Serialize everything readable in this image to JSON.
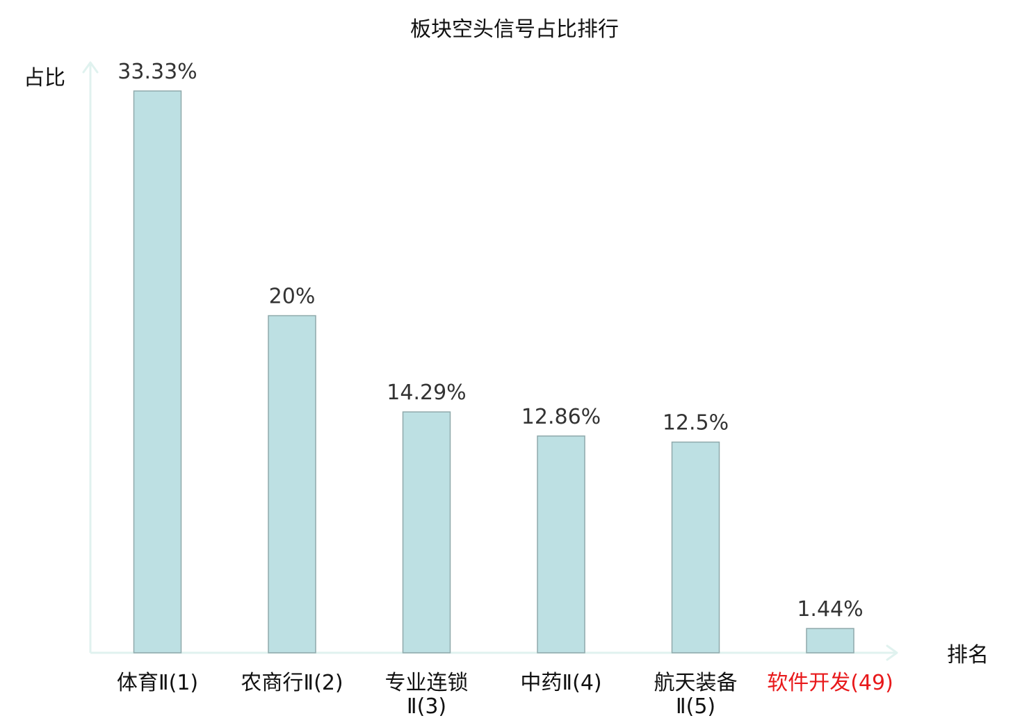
{
  "chart_data": {
    "type": "bar",
    "title": "板块空头信号占比排行",
    "ylabel": "占比",
    "xlabel": "排名",
    "categories": [
      [
        "体育Ⅱ(1)"
      ],
      [
        "农商行Ⅱ(2)"
      ],
      [
        "专业连锁",
        "Ⅱ(3)"
      ],
      [
        "中药Ⅱ(4)"
      ],
      [
        "航天装备",
        "Ⅱ(5)"
      ],
      [
        "软件开发(49)"
      ]
    ],
    "values": [
      33.33,
      20,
      14.29,
      12.86,
      12.5,
      1.44
    ],
    "value_labels": [
      "33.33%",
      "20%",
      "14.29%",
      "12.86%",
      "12.5%",
      "1.44%"
    ],
    "highlight_index": 5,
    "ylim": [
      0,
      33.33
    ],
    "grid": false,
    "colors": {
      "bar_fill": "#bde0e3",
      "bar_stroke": "#8fa9ab",
      "axis": "#e0f2ef",
      "label_text": "#333333",
      "axis_text": "#111111",
      "highlight_text": "#e8191b"
    }
  }
}
